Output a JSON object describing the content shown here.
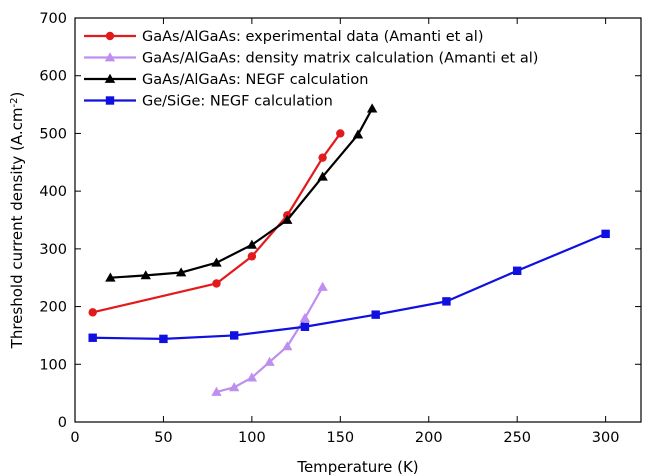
{
  "chart_data": {
    "type": "line",
    "xlabel": "Temperature (K)",
    "ylabel": "Threshold current density (A.cm",
    "ylabel_superscript": "-2",
    "ylabel_suffix": ")",
    "xlim": [
      0,
      320
    ],
    "ylim": [
      0,
      700
    ],
    "xticks": [
      0,
      50,
      100,
      150,
      200,
      250,
      300
    ],
    "yticks": [
      0,
      100,
      200,
      300,
      400,
      500,
      600,
      700
    ],
    "grid": false,
    "legend_position": "top-left",
    "series": [
      {
        "name": "GaAs/AlGaAs: experimental data (Amanti et al)",
        "color": "#e31a1c",
        "marker": "circle",
        "x": [
          10,
          80,
          100,
          120,
          140,
          150
        ],
        "y": [
          190,
          240,
          287,
          358,
          458,
          500
        ]
      },
      {
        "name": "GaAs/AlGaAs: density matrix calculation (Amanti et al)",
        "color": "#bf8ff0",
        "marker": "triangle",
        "x": [
          80,
          90,
          100,
          110,
          120,
          130,
          140
        ],
        "y": [
          52,
          60,
          77,
          104,
          131,
          180,
          234
        ]
      },
      {
        "name": "GaAs/AlGaAs: NEGF calculation",
        "color": "#000000",
        "marker": "triangle",
        "x": [
          20,
          40,
          60,
          80,
          100,
          120,
          140,
          160,
          168
        ],
        "y": [
          250,
          254,
          259,
          276,
          307,
          350,
          425,
          498,
          543
        ]
      },
      {
        "name": "Ge/SiGe: NEGF calculation",
        "color": "#1010e0",
        "marker": "square",
        "x": [
          10,
          50,
          90,
          130,
          170,
          210,
          250,
          300
        ],
        "y": [
          146,
          144,
          150,
          165,
          186,
          209,
          262,
          326
        ]
      }
    ]
  }
}
